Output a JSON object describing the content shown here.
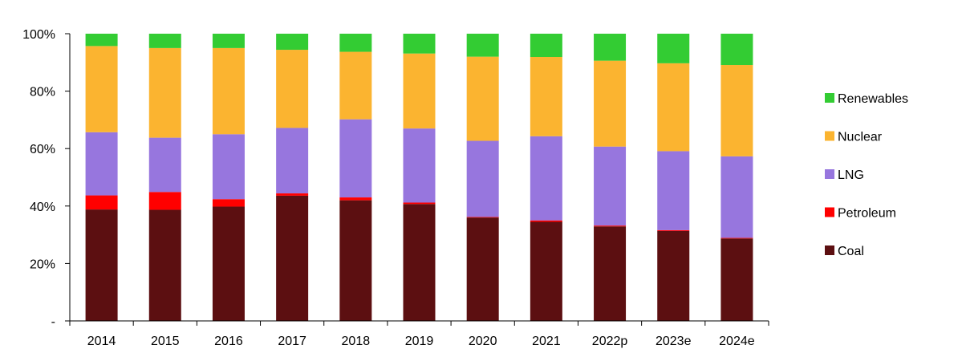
{
  "chart_data": {
    "type": "bar",
    "stacked": true,
    "percent": true,
    "categories": [
      "2014",
      "2015",
      "2016",
      "2017",
      "2018",
      "2019",
      "2020",
      "2021",
      "2022p",
      "2023e",
      "2024e"
    ],
    "series": [
      {
        "name": "Coal",
        "color": "#5c0f11",
        "values": [
          38.8,
          38.7,
          39.8,
          43.6,
          42.0,
          40.7,
          36.0,
          34.5,
          32.9,
          31.3,
          28.7
        ]
      },
      {
        "name": "Petroleum",
        "color": "#ff0000",
        "values": [
          4.9,
          6.2,
          2.6,
          0.8,
          1.0,
          0.5,
          0.2,
          0.5,
          0.3,
          0.3,
          0.2
        ]
      },
      {
        "name": "LNG",
        "color": "#9776de",
        "values": [
          22.0,
          18.9,
          22.6,
          22.8,
          27.2,
          25.8,
          26.5,
          29.3,
          27.5,
          27.5,
          28.4
        ]
      },
      {
        "name": "Nuclear",
        "color": "#fbb430",
        "values": [
          30.0,
          31.2,
          30.0,
          27.2,
          23.5,
          26.1,
          29.3,
          27.6,
          29.9,
          30.6,
          31.8
        ]
      },
      {
        "name": "Renewables",
        "color": "#33cc33",
        "values": [
          4.3,
          5.0,
          5.0,
          5.6,
          6.3,
          6.9,
          8.0,
          8.1,
          9.4,
          10.3,
          10.9
        ]
      }
    ],
    "y_ticks": [
      "-",
      "20%",
      "40%",
      "60%",
      "80%",
      "100%"
    ],
    "ylim": [
      0,
      100
    ],
    "xlabel": "",
    "ylabel": "",
    "title": "",
    "legend": {
      "placement": "right",
      "order": [
        "Renewables",
        "Nuclear",
        "LNG",
        "Petroleum",
        "Coal"
      ]
    }
  }
}
